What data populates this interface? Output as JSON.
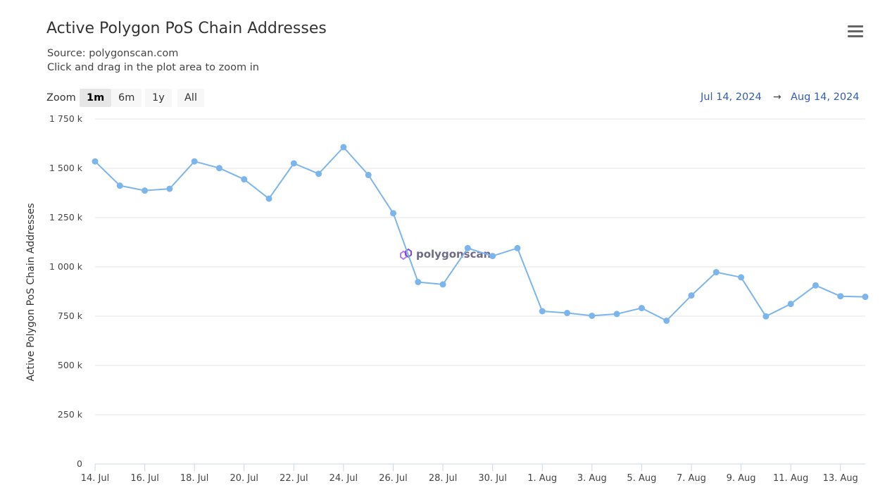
{
  "header": {
    "title": "Active Polygon PoS Chain Addresses",
    "source": "Source: polygonscan.com",
    "hint": "Click and drag in the plot area to zoom in",
    "menu_icon": "hamburger-menu-icon"
  },
  "zoom": {
    "label": "Zoom",
    "buttons": [
      "1m",
      "6m",
      "1y",
      "All"
    ],
    "active": "1m"
  },
  "range": {
    "from": "Jul 14, 2024",
    "arrow": "→",
    "to": "Aug 14, 2024"
  },
  "watermark": {
    "text": "polygonscan",
    "icon": "polygon-logo-icon",
    "color": "#8247e5"
  },
  "chart_data": {
    "type": "line",
    "title": "Active Polygon PoS Chain Addresses",
    "ylabel": "Active Polygon PoS Chain Addresses",
    "xlabel": "",
    "color": "#7cb5ec",
    "ylim": [
      0,
      1750000
    ],
    "yticks": [
      0,
      250000,
      500000,
      750000,
      1000000,
      1250000,
      1500000,
      1750000
    ],
    "ytick_labels": [
      "0",
      "250 k",
      "500 k",
      "750 k",
      "1 000 k",
      "1 250 k",
      "1 500 k",
      "1 750 k"
    ],
    "xtick_labels": [
      "14. Jul",
      "16. Jul",
      "18. Jul",
      "20. Jul",
      "22. Jul",
      "24. Jul",
      "26. Jul",
      "28. Jul",
      "30. Jul",
      "1. Aug",
      "3. Aug",
      "5. Aug",
      "7. Aug",
      "9. Aug",
      "11. Aug",
      "13. Aug"
    ],
    "grid": true,
    "series": [
      {
        "values": [
          1535000,
          1412000,
          1387000,
          1396000,
          1535000,
          1501000,
          1444000,
          1346000,
          1525000,
          1472000,
          1607000,
          1466000,
          1272000,
          923000,
          911000,
          1095000,
          1055000,
          1095000,
          775000,
          766000,
          752000,
          761000,
          791000,
          727000,
          855000,
          973000,
          947000,
          749000,
          812000,
          906000,
          851000,
          848000
        ]
      }
    ]
  }
}
